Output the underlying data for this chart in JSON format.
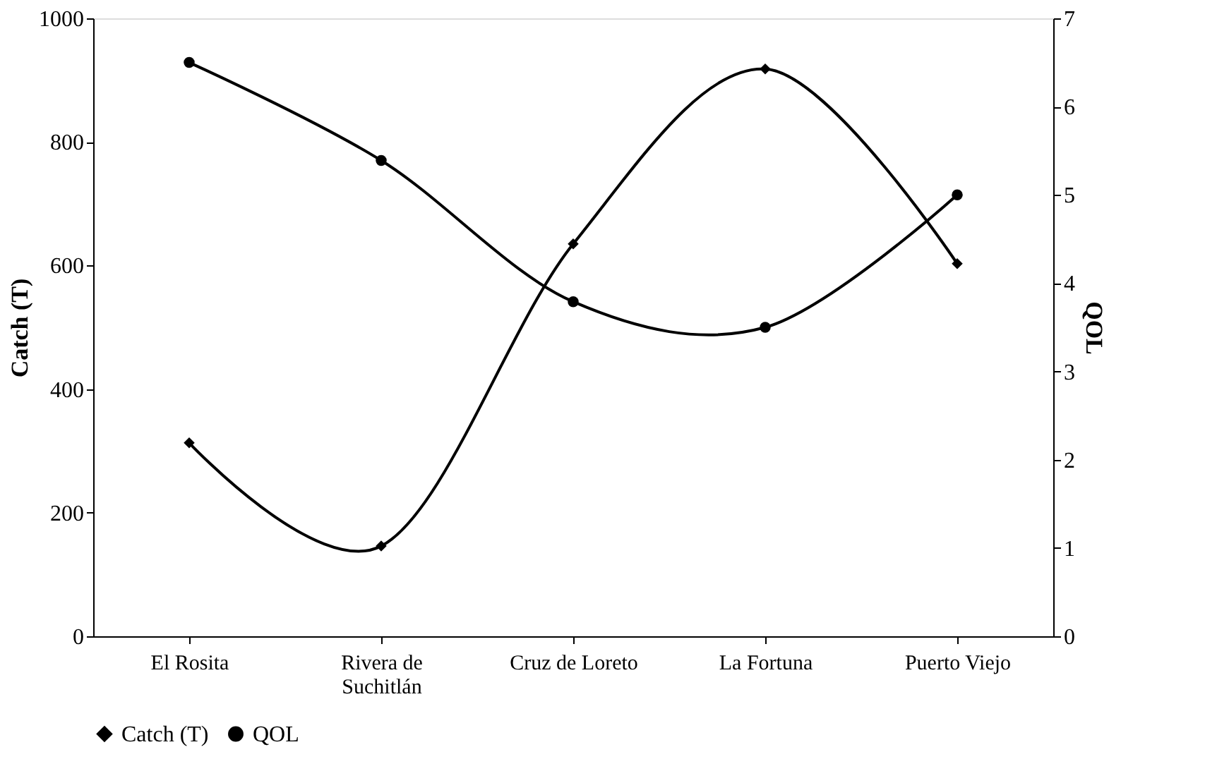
{
  "chart_data": {
    "type": "line",
    "ylabel": "Catch (T)",
    "y2label": "QOL",
    "categories": [
      "El Rosita",
      "Rivera de Suchitlán",
      "Cruz de Loreto",
      "La Fortuna",
      "Puerto Viejo"
    ],
    "series": [
      {
        "name": "Catch (T)",
        "color": "#000000",
        "marker": "diamond",
        "values": [
          313,
          146,
          635,
          918,
          603
        ]
      },
      {
        "name": "QOL",
        "color": "#000000",
        "marker": "circle",
        "axis": "y2",
        "values": [
          6.5,
          5.39,
          3.79,
          3.5,
          5.0
        ]
      }
    ],
    "ylim": [
      0,
      1000
    ],
    "yticks": [
      0,
      200,
      400,
      600,
      800,
      1000
    ],
    "y2lim": [
      0,
      7
    ],
    "y2ticks": [
      0,
      1,
      2,
      3,
      4,
      5,
      6,
      7
    ],
    "grid": false,
    "legend": "bottom",
    "line_style": "solid"
  }
}
